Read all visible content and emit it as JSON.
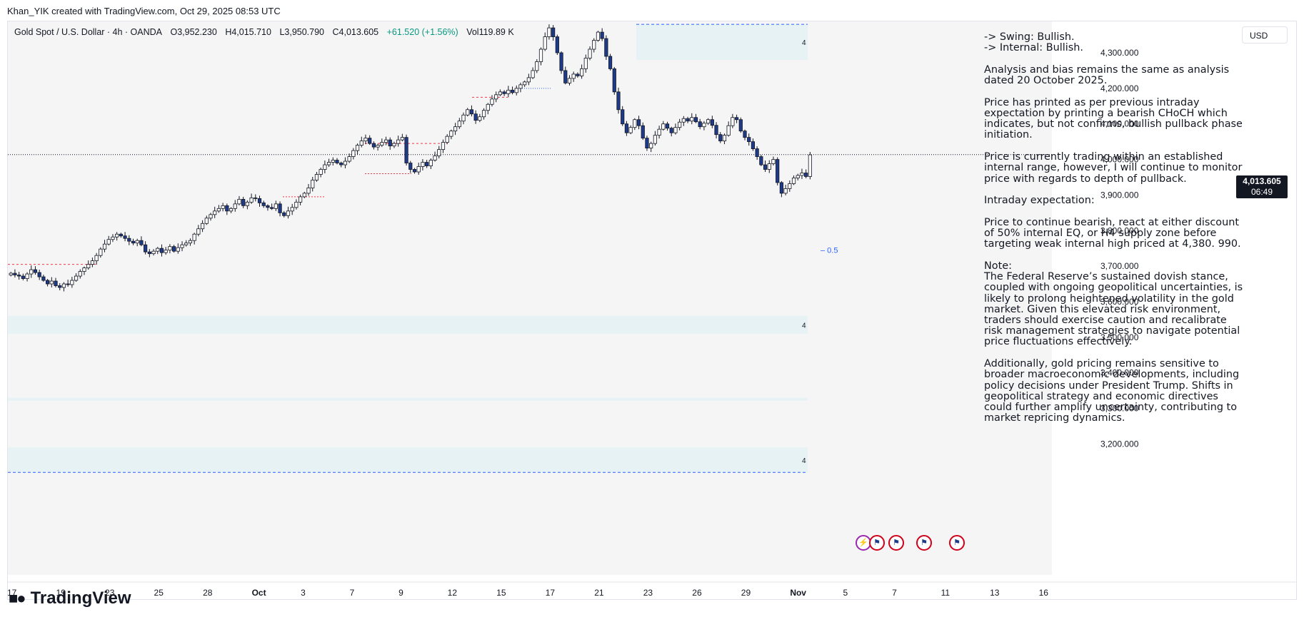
{
  "attribution": "Khan_YIK created with TradingView.com, Oct 29, 2025 08:53 UTC",
  "symbol": {
    "name": "Gold Spot / U.S. Dollar · 4h · OANDA",
    "open": "O3,952.230",
    "high": "H4,015.710",
    "low": "L3,950.790",
    "close": "C4,013.605",
    "change": "+61.520 (+1.56%)",
    "volume": "Vol119.89 K"
  },
  "currency": "USD",
  "last_price": "4,013.605",
  "countdown": "06:49",
  "level_label": "0.5",
  "zone_labels": [
    "4",
    "4",
    "4"
  ],
  "note": {
    "swing": "-> Swing:  Bullish.",
    "internal": "-> Internal:  Bullish.",
    "p1": "Analysis and bias remains the same as analysis dated 20 October 2025.",
    "p2": "Price has printed as per previous intraday expectation by printing a bearish CHoCH which indicates, but not confirms, bullish pullback phase initiation.",
    "p3": "Price is currently trading within an established internal range, however, I will continue to monitor price with regards to depth of pullback.",
    "p4": "Intraday expectation:",
    "p5": "Price to continue bearish, react at either discount of 50% internal EQ, or H4 supply zone before targeting weak internal high priced at 4,380. 990.",
    "p6_title": "Note:",
    "p6": "The Federal Reserve’s sustained dovish stance, coupled with ongoing geopolitical uncertainties, is likely to prolong heightened volatility in the gold market. Given this elevated risk environment, traders should exercise caution and recalibrate risk management strategies to navigate potential price fluctuations effectively.",
    "p7": "Additionally, gold pricing remains sensitive to broader macroeconomic developments, including policy decisions under President Trump. Shifts in geopolitical strategy and economic directives could further amplify uncertainty, contributing to market repricing dynamics."
  },
  "footer": "TradingView",
  "colors": {
    "bull": "#ffffff",
    "bear": "#1e3a8a",
    "zone": "#e6f2f4",
    "grid_bg": "#f6f5f6"
  },
  "chart_data": {
    "type": "candlestick",
    "timeframe": "4h",
    "y_ticks": [
      4300,
      4200,
      4100,
      4000,
      3900,
      3800,
      3700,
      3600,
      3500,
      3400,
      3300,
      3200
    ],
    "y_tick_labels": [
      "4,300.000",
      "4,200.000",
      "4,100.000",
      "4,000.000",
      "3,900.000",
      "3,800.000",
      "3,700.000",
      "3,600.000",
      "3,500.000",
      "3,400.000",
      "3,300.000",
      "3,200.000"
    ],
    "ylim": [
      3120,
      4380
    ],
    "x_tick_labels": [
      "17",
      "19",
      "23",
      "25",
      "28",
      "Oct",
      "3",
      "7",
      "9",
      "12",
      "15",
      "17",
      "21",
      "23",
      "26",
      "29",
      "Nov",
      "5",
      "7",
      "11",
      "13",
      "16"
    ],
    "x_tick_bars": [
      0,
      12,
      24,
      36,
      48,
      60,
      72,
      84,
      96,
      108,
      120,
      132,
      144,
      156,
      168,
      180,
      192,
      205,
      217,
      229,
      241,
      253
    ],
    "total_bars": 258,
    "last_price": 4013.605,
    "closes": [
      3680,
      3675,
      3672,
      3665,
      3678,
      3690,
      3682,
      3670,
      3660,
      3650,
      3658,
      3645,
      3640,
      3650,
      3648,
      3660,
      3672,
      3685,
      3695,
      3705,
      3715,
      3730,
      3748,
      3762,
      3775,
      3782,
      3790,
      3785,
      3778,
      3770,
      3765,
      3772,
      3760,
      3740,
      3735,
      3742,
      3750,
      3738,
      3745,
      3755,
      3742,
      3752,
      3760,
      3765,
      3772,
      3790,
      3805,
      3820,
      3835,
      3845,
      3855,
      3862,
      3870,
      3855,
      3862,
      3875,
      3888,
      3870,
      3880,
      3892,
      3890,
      3878,
      3870,
      3865,
      3862,
      3875,
      3850,
      3842,
      3855,
      3865,
      3880,
      3895,
      3905,
      3920,
      3942,
      3958,
      3972,
      3985,
      3992,
      3998,
      3990,
      3985,
      3995,
      4008,
      4025,
      4040,
      4052,
      4060,
      4045,
      4035,
      4040,
      4048,
      4055,
      4038,
      4045,
      4055,
      4062,
      3990,
      3972,
      3965,
      3980,
      3992,
      3982,
      3998,
      4010,
      4028,
      4048,
      4065,
      4080,
      4092,
      4108,
      4125,
      4140,
      4128,
      4110,
      4120,
      4138,
      4155,
      4170,
      4182,
      4190,
      4185,
      4195,
      4188,
      4200,
      4210,
      4218,
      4230,
      4250,
      4275,
      4310,
      4345,
      4370,
      4345,
      4300,
      4250,
      4215,
      4228,
      4240,
      4235,
      4255,
      4285,
      4310,
      4335,
      4358,
      4340,
      4290,
      4255,
      4190,
      4140,
      4100,
      4075,
      4090,
      4112,
      4095,
      4060,
      4032,
      4045,
      4068,
      4085,
      4100,
      4088,
      4075,
      4090,
      4105,
      4115,
      4108,
      4118,
      4106,
      4092,
      4102,
      4112,
      4096,
      4070,
      4052,
      4068,
      4095,
      4118,
      4112,
      4080,
      4062,
      4050,
      4030,
      4008,
      3985,
      3972,
      3988,
      4000,
      3935,
      3905,
      3918,
      3932,
      3948,
      3955,
      3962,
      3952,
      4013
    ]
  }
}
